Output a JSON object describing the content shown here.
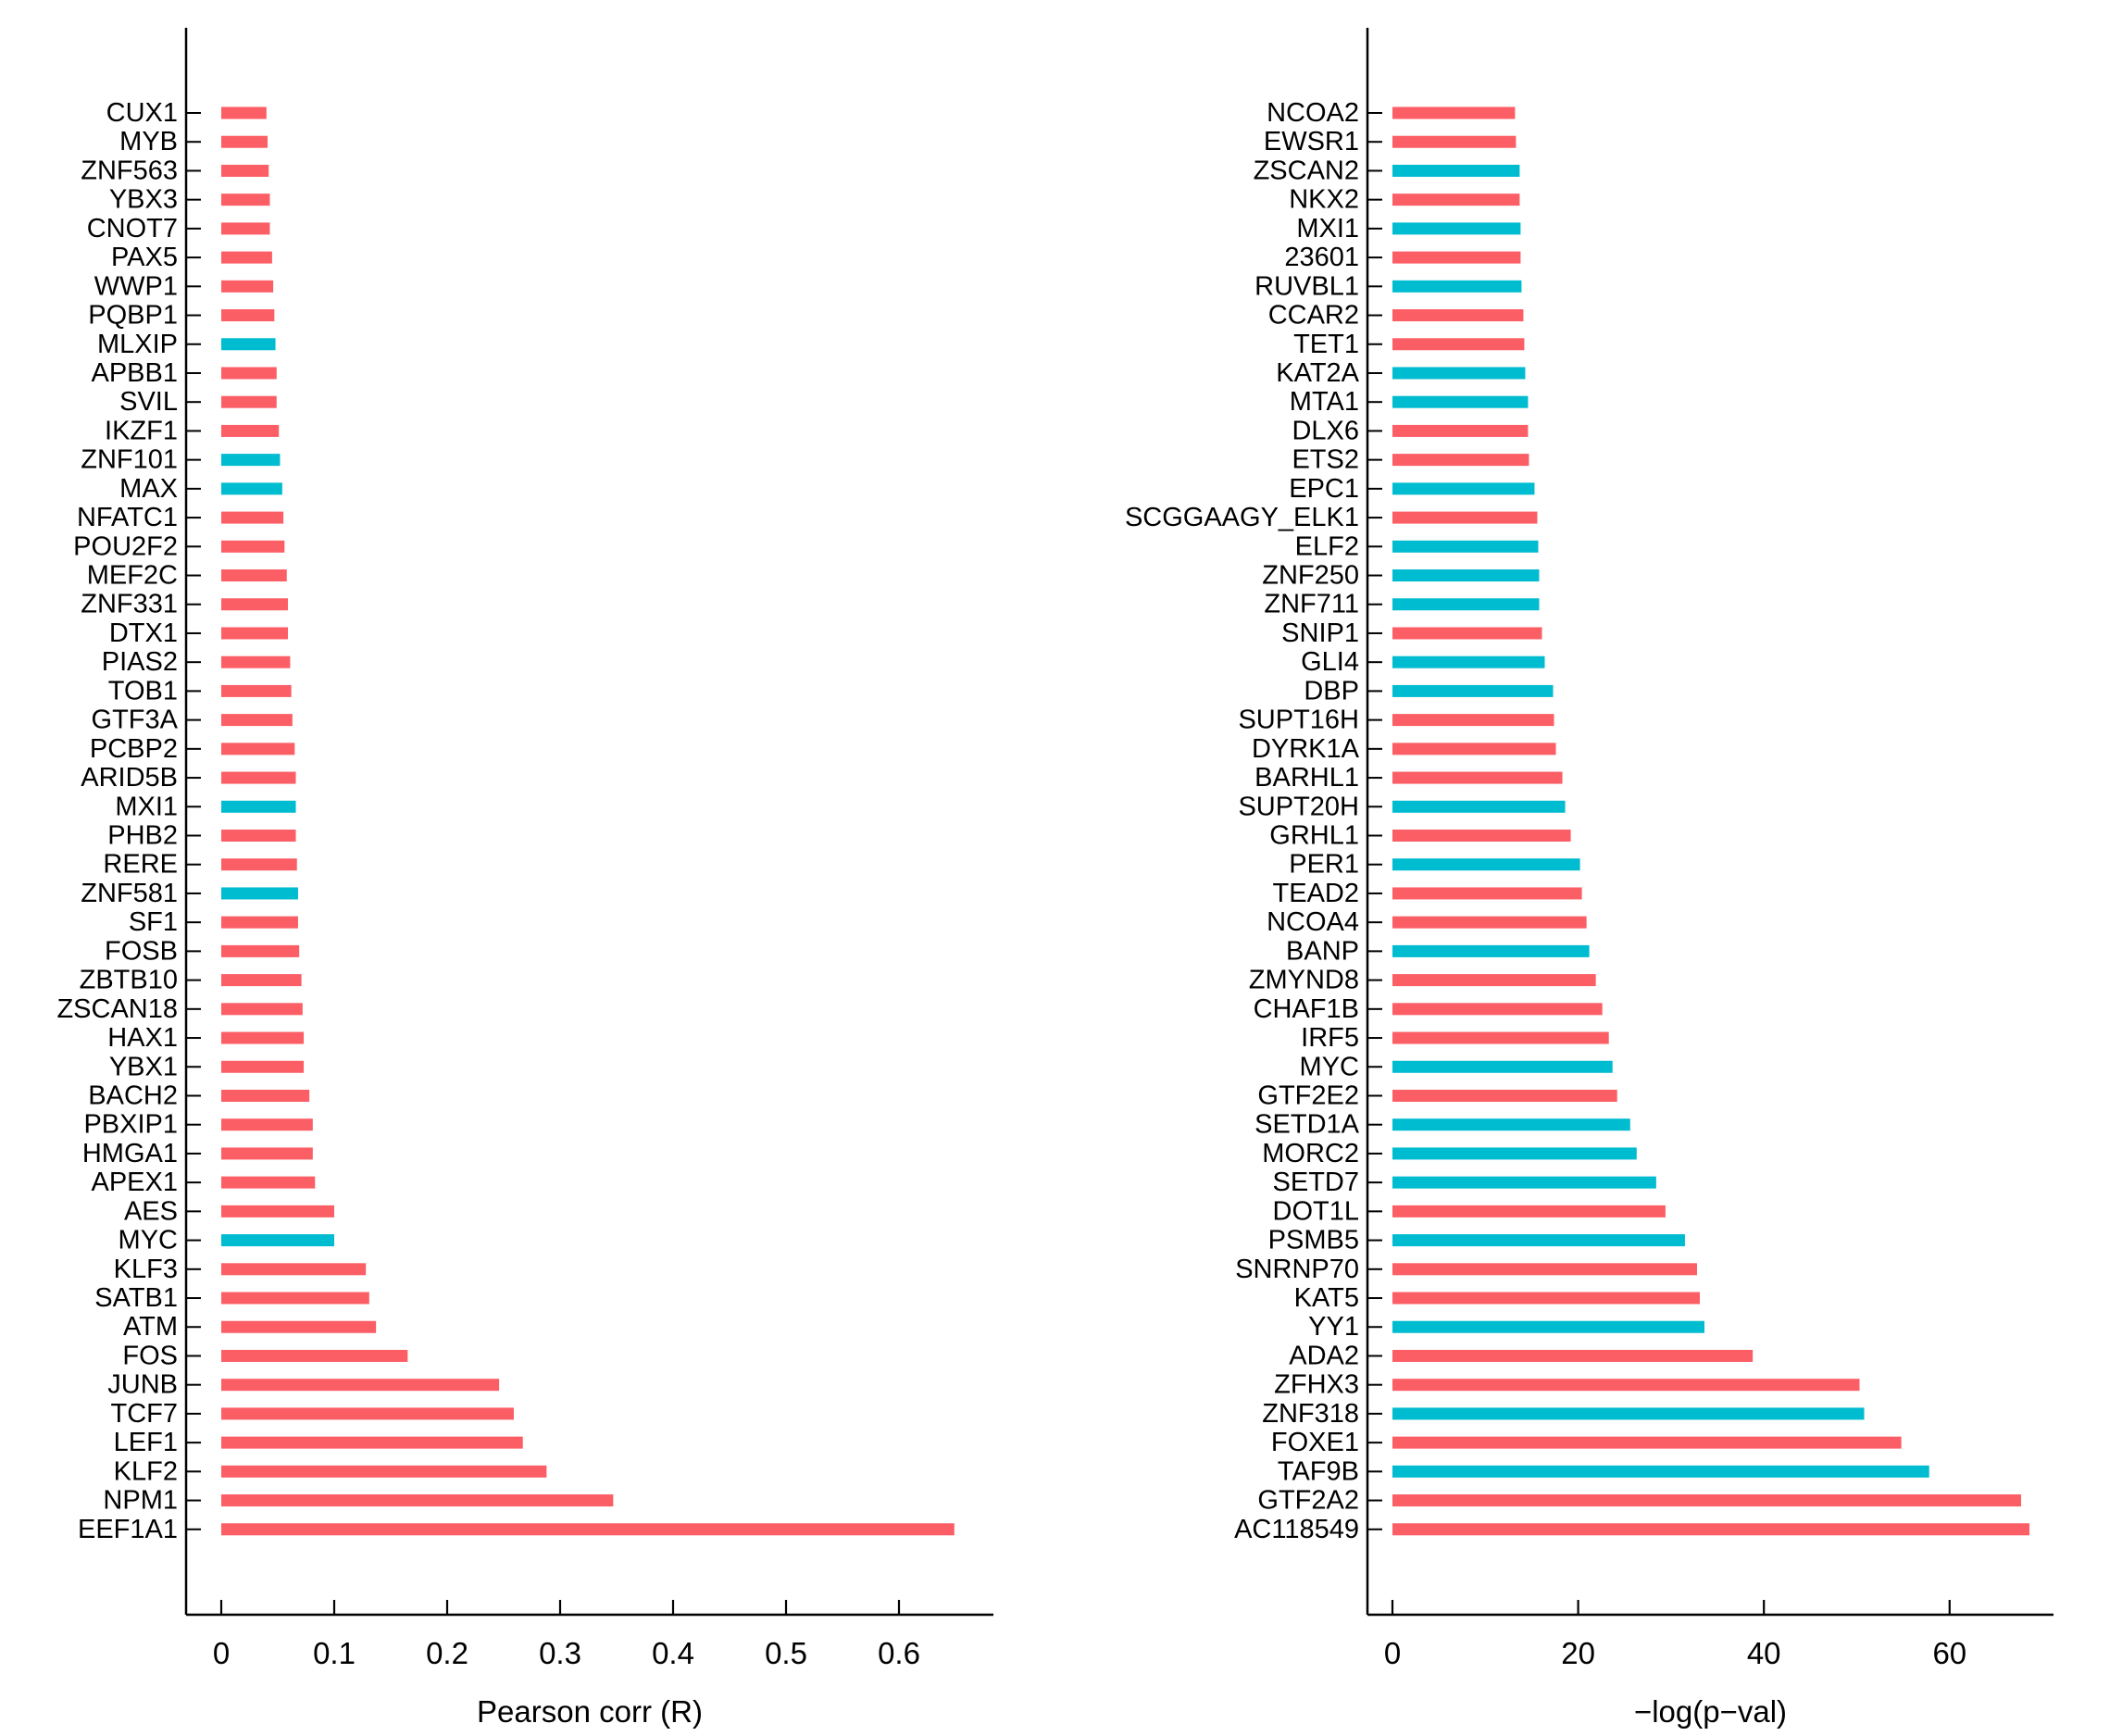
{
  "figure_bg": "#ffffff",
  "axis_color": "#000000",
  "text_color": "#000000",
  "palette": {
    "red": "#FC5E66",
    "cyan": "#00BCD0"
  },
  "chart_data": [
    {
      "type": "bar",
      "orientation": "horizontal",
      "title": "",
      "xlabel": "Pearson corr (R)",
      "ylabel": "",
      "xlim": [
        0,
        0.684
      ],
      "xticks": [
        0,
        0.1,
        0.2,
        0.3,
        0.4,
        0.5,
        0.6
      ],
      "grid": false,
      "legend": null,
      "bars": [
        {
          "label": "CUX1",
          "value": 0.04,
          "color": "red"
        },
        {
          "label": "MYB",
          "value": 0.041,
          "color": "red"
        },
        {
          "label": "ZNF563",
          "value": 0.042,
          "color": "red"
        },
        {
          "label": "YBX3",
          "value": 0.043,
          "color": "red"
        },
        {
          "label": "CNOT7",
          "value": 0.043,
          "color": "red"
        },
        {
          "label": "PAX5",
          "value": 0.045,
          "color": "red"
        },
        {
          "label": "WWP1",
          "value": 0.046,
          "color": "red"
        },
        {
          "label": "PQBP1",
          "value": 0.047,
          "color": "red"
        },
        {
          "label": "MLXIP",
          "value": 0.048,
          "color": "cyan"
        },
        {
          "label": "APBB1",
          "value": 0.049,
          "color": "red"
        },
        {
          "label": "SVIL",
          "value": 0.049,
          "color": "red"
        },
        {
          "label": "IKZF1",
          "value": 0.051,
          "color": "red"
        },
        {
          "label": "ZNF101",
          "value": 0.052,
          "color": "cyan"
        },
        {
          "label": "MAX",
          "value": 0.054,
          "color": "cyan"
        },
        {
          "label": "NFATC1",
          "value": 0.055,
          "color": "red"
        },
        {
          "label": "POU2F2",
          "value": 0.056,
          "color": "red"
        },
        {
          "label": "MEF2C",
          "value": 0.058,
          "color": "red"
        },
        {
          "label": "ZNF331",
          "value": 0.059,
          "color": "red"
        },
        {
          "label": "DTX1",
          "value": 0.059,
          "color": "red"
        },
        {
          "label": "PIAS2",
          "value": 0.061,
          "color": "red"
        },
        {
          "label": "TOB1",
          "value": 0.062,
          "color": "red"
        },
        {
          "label": "GTF3A",
          "value": 0.063,
          "color": "red"
        },
        {
          "label": "PCBP2",
          "value": 0.065,
          "color": "red"
        },
        {
          "label": "ARID5B",
          "value": 0.066,
          "color": "red"
        },
        {
          "label": "MXI1",
          "value": 0.066,
          "color": "cyan"
        },
        {
          "label": "PHB2",
          "value": 0.066,
          "color": "red"
        },
        {
          "label": "RERE",
          "value": 0.067,
          "color": "red"
        },
        {
          "label": "ZNF581",
          "value": 0.068,
          "color": "cyan"
        },
        {
          "label": "SF1",
          "value": 0.068,
          "color": "red"
        },
        {
          "label": "FOSB",
          "value": 0.069,
          "color": "red"
        },
        {
          "label": "ZBTB10",
          "value": 0.071,
          "color": "red"
        },
        {
          "label": "ZSCAN18",
          "value": 0.072,
          "color": "red"
        },
        {
          "label": "HAX1",
          "value": 0.073,
          "color": "red"
        },
        {
          "label": "YBX1",
          "value": 0.073,
          "color": "red"
        },
        {
          "label": "BACH2",
          "value": 0.078,
          "color": "red"
        },
        {
          "label": "PBXIP1",
          "value": 0.081,
          "color": "red"
        },
        {
          "label": "HMGA1",
          "value": 0.081,
          "color": "red"
        },
        {
          "label": "APEX1",
          "value": 0.083,
          "color": "red"
        },
        {
          "label": "AES",
          "value": 0.1,
          "color": "red"
        },
        {
          "label": "MYC",
          "value": 0.1,
          "color": "cyan"
        },
        {
          "label": "KLF3",
          "value": 0.128,
          "color": "red"
        },
        {
          "label": "SATB1",
          "value": 0.131,
          "color": "red"
        },
        {
          "label": "ATM",
          "value": 0.137,
          "color": "red"
        },
        {
          "label": "FOS",
          "value": 0.165,
          "color": "red"
        },
        {
          "label": "JUNB",
          "value": 0.246,
          "color": "red"
        },
        {
          "label": "TCF7",
          "value": 0.259,
          "color": "red"
        },
        {
          "label": "LEF1",
          "value": 0.267,
          "color": "red"
        },
        {
          "label": "KLF2",
          "value": 0.288,
          "color": "red"
        },
        {
          "label": "NPM1",
          "value": 0.347,
          "color": "red"
        },
        {
          "label": "EEF1A1",
          "value": 0.649,
          "color": "red"
        }
      ]
    },
    {
      "type": "bar",
      "orientation": "horizontal",
      "title": "",
      "xlabel": "−log(p−val)",
      "ylabel": "",
      "xlim": [
        0,
        71.2
      ],
      "xticks": [
        0,
        20,
        40,
        60
      ],
      "grid": false,
      "legend": null,
      "bars": [
        {
          "label": "NCOA2",
          "value": 13.2,
          "color": "red"
        },
        {
          "label": "EWSR1",
          "value": 13.3,
          "color": "red"
        },
        {
          "label": "ZSCAN2",
          "value": 13.7,
          "color": "cyan"
        },
        {
          "label": "NKX2",
          "value": 13.7,
          "color": "red"
        },
        {
          "label": "MXI1",
          "value": 13.8,
          "color": "cyan"
        },
        {
          "label": "23601",
          "value": 13.8,
          "color": "red"
        },
        {
          "label": "RUVBL1",
          "value": 13.9,
          "color": "cyan"
        },
        {
          "label": "CCAR2",
          "value": 14.1,
          "color": "red"
        },
        {
          "label": "TET1",
          "value": 14.2,
          "color": "red"
        },
        {
          "label": "KAT2A",
          "value": 14.3,
          "color": "cyan"
        },
        {
          "label": "MTA1",
          "value": 14.6,
          "color": "cyan"
        },
        {
          "label": "DLX6",
          "value": 14.6,
          "color": "red"
        },
        {
          "label": "ETS2",
          "value": 14.7,
          "color": "red"
        },
        {
          "label": "EPC1",
          "value": 15.3,
          "color": "cyan"
        },
        {
          "label": "SCGGAAGY_ELK1",
          "value": 15.6,
          "color": "red"
        },
        {
          "label": "ELF2",
          "value": 15.7,
          "color": "cyan"
        },
        {
          "label": "ZNF250",
          "value": 15.8,
          "color": "cyan"
        },
        {
          "label": "ZNF711",
          "value": 15.8,
          "color": "cyan"
        },
        {
          "label": "SNIP1",
          "value": 16.1,
          "color": "red"
        },
        {
          "label": "GLI4",
          "value": 16.4,
          "color": "cyan"
        },
        {
          "label": "DBP",
          "value": 17.3,
          "color": "cyan"
        },
        {
          "label": "SUPT16H",
          "value": 17.4,
          "color": "red"
        },
        {
          "label": "DYRK1A",
          "value": 17.6,
          "color": "red"
        },
        {
          "label": "BARHL1",
          "value": 18.3,
          "color": "red"
        },
        {
          "label": "SUPT20H",
          "value": 18.6,
          "color": "cyan"
        },
        {
          "label": "GRHL1",
          "value": 19.2,
          "color": "red"
        },
        {
          "label": "PER1",
          "value": 20.2,
          "color": "cyan"
        },
        {
          "label": "TEAD2",
          "value": 20.4,
          "color": "red"
        },
        {
          "label": "NCOA4",
          "value": 20.9,
          "color": "red"
        },
        {
          "label": "BANP",
          "value": 21.2,
          "color": "cyan"
        },
        {
          "label": "ZMYND8",
          "value": 21.9,
          "color": "red"
        },
        {
          "label": "CHAF1B",
          "value": 22.6,
          "color": "red"
        },
        {
          "label": "IRF5",
          "value": 23.3,
          "color": "red"
        },
        {
          "label": "MYC",
          "value": 23.7,
          "color": "cyan"
        },
        {
          "label": "GTF2E2",
          "value": 24.2,
          "color": "red"
        },
        {
          "label": "SETD1A",
          "value": 25.6,
          "color": "cyan"
        },
        {
          "label": "MORC2",
          "value": 26.3,
          "color": "cyan"
        },
        {
          "label": "SETD7",
          "value": 28.4,
          "color": "cyan"
        },
        {
          "label": "DOT1L",
          "value": 29.4,
          "color": "red"
        },
        {
          "label": "PSMB5",
          "value": 31.5,
          "color": "cyan"
        },
        {
          "label": "SNRNP70",
          "value": 32.8,
          "color": "red"
        },
        {
          "label": "KAT5",
          "value": 33.1,
          "color": "red"
        },
        {
          "label": "YY1",
          "value": 33.6,
          "color": "cyan"
        },
        {
          "label": "ADA2",
          "value": 38.8,
          "color": "red"
        },
        {
          "label": "ZFHX3",
          "value": 50.3,
          "color": "red"
        },
        {
          "label": "ZNF318",
          "value": 50.8,
          "color": "cyan"
        },
        {
          "label": "FOXE1",
          "value": 54.8,
          "color": "red"
        },
        {
          "label": "TAF9B",
          "value": 57.8,
          "color": "cyan"
        },
        {
          "label": "GTF2A2",
          "value": 67.7,
          "color": "red"
        },
        {
          "label": "AC118549",
          "value": 68.6,
          "color": "red"
        }
      ]
    }
  ]
}
